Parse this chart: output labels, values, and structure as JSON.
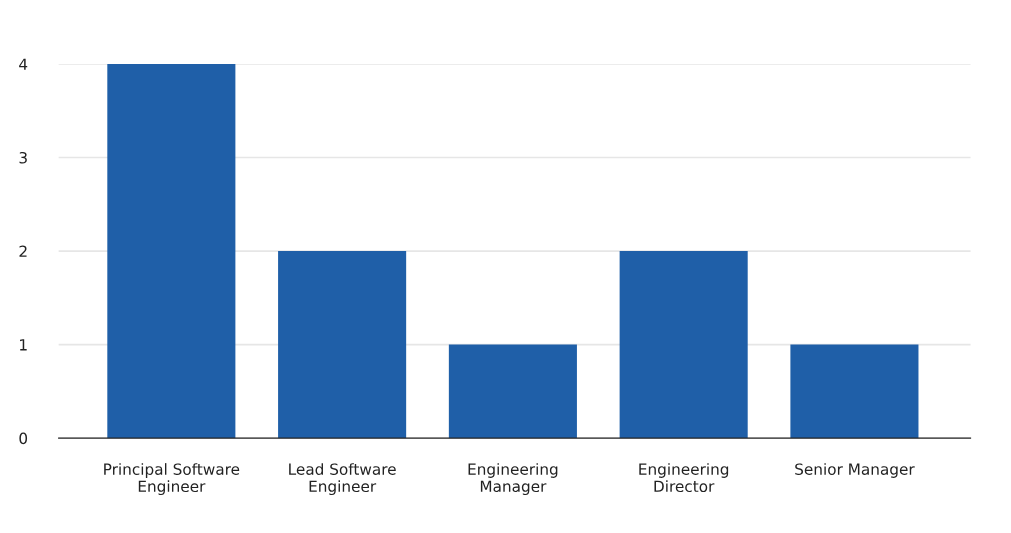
{
  "chart_data": {
    "type": "bar",
    "categories": [
      "Principal Software\nEngineer",
      "Lead Software\nEngineer",
      "Engineering\nManager",
      "Engineering\nDirector",
      "Senior Manager"
    ],
    "values": [
      4,
      2,
      1,
      2,
      1
    ],
    "color": "#1f5fa8",
    "ylim": [
      0,
      4
    ],
    "yticks": [
      0,
      1,
      2,
      3,
      4
    ],
    "grid": "y",
    "legend": false
  }
}
